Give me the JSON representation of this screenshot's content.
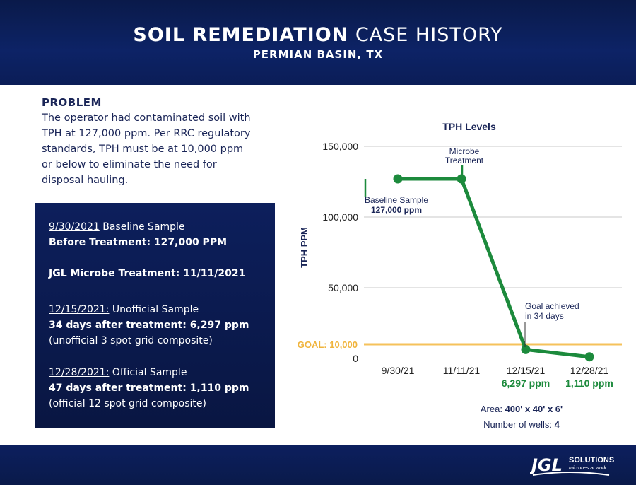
{
  "header": {
    "title_bold": "SOIL REMEDIATION",
    "title_rest": " CASE HISTORY",
    "subtitle": "PERMIAN BASIN, TX"
  },
  "problem": {
    "heading": "PROBLEM",
    "lines": [
      "The operator had contaminated soil with",
      "TPH at 127,000 ppm. Per RRC regulatory",
      "standards, TPH must be at 10,000 ppm",
      "or below to eliminate the need for",
      "disposal hauling."
    ]
  },
  "timeline": {
    "baseline_date": "9/30/2021",
    "baseline_label": " Baseline Sample",
    "before_treatment": "Before Treatment: 127,000 PPM",
    "treatment": "JGL Microbe Treatment: 11/11/2021",
    "unofficial_date": "12/15/2021:",
    "unofficial_label": " Unofficial Sample",
    "unofficial_days": " 34 days after treatment",
    "unofficial_value": ": 6,297 ppm",
    "unofficial_note": "(unofficial 3 spot grid composite)",
    "official_date": "12/28/2021:",
    "official_label": " Official Sample",
    "official_days": " 47 days after treatment",
    "official_value": ": 1,110 ppm",
    "official_note": "(official 12 spot grid composite)"
  },
  "chart_data": {
    "type": "line",
    "title": "TPH Levels",
    "ylabel": "TPH PPM",
    "xlabel": "",
    "categories": [
      "9/30/21",
      "11/11/21",
      "12/15/21",
      "12/28/21"
    ],
    "series": [
      {
        "values": [
          127000,
          127000,
          6297,
          1110
        ]
      }
    ],
    "ylim": [
      0,
      150000
    ],
    "yticks": [
      0,
      50000,
      100000,
      150000
    ],
    "ytick_labels": [
      "0",
      "50,000",
      "100,000",
      "150,000"
    ],
    "grid": true,
    "goal": {
      "value": 10000,
      "label": "GOAL: 10,000"
    },
    "annotations": {
      "baseline_line1": "Baseline Sample",
      "baseline_line2": "127,000 ppm",
      "microbe_line1": "Microbe",
      "microbe_line2": "Treatment",
      "goal_line1": "Goal achieved",
      "goal_line2": "in 34 days"
    },
    "value_labels": [
      "",
      "",
      "6,297 ppm",
      "1,110 ppm"
    ]
  },
  "site_info": {
    "area_label": "Area: ",
    "area_value": "400' x 40' x 6'",
    "wells_label": "Number of wells: ",
    "wells_value": "4"
  },
  "logo": {
    "brand": "JGL",
    "name": "SOLUTIONS",
    "tagline": "microbes at work"
  },
  "colors": {
    "navy": "#0d2366",
    "line_green": "#1c8a3c",
    "goal_yellow": "#f5c25b",
    "goal_text": "#f0b43c",
    "value_green": "#1c8a3c"
  }
}
